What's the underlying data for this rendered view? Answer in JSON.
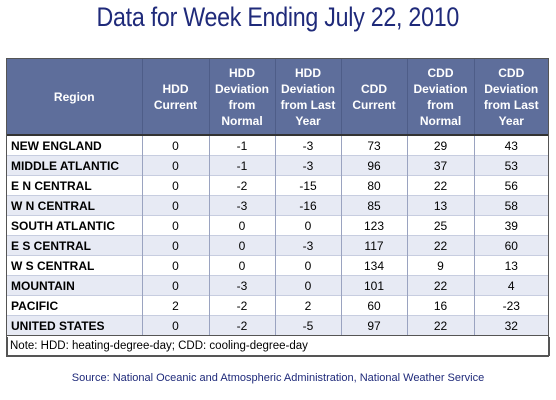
{
  "title": "Data for Week Ending July 22, 2010",
  "headers": [
    "Region",
    "HDD Current",
    "HDD Deviation from Normal",
    "HDD Deviation from Last Year",
    "CDD Current",
    "CDD Deviation from Normal",
    "CDD Deviation from Last Year"
  ],
  "rows": [
    [
      "NEW ENGLAND",
      "0",
      "-1",
      "-3",
      "73",
      "29",
      "43"
    ],
    [
      "MIDDLE ATLANTIC",
      "0",
      "-1",
      "-3",
      "96",
      "37",
      "53"
    ],
    [
      "E N CENTRAL",
      "0",
      "-2",
      "-15",
      "80",
      "22",
      "56"
    ],
    [
      "W N CENTRAL",
      "0",
      "-3",
      "-16",
      "85",
      "13",
      "58"
    ],
    [
      "SOUTH ATLANTIC",
      "0",
      "0",
      "0",
      "123",
      "25",
      "39"
    ],
    [
      "E S CENTRAL",
      "0",
      "0",
      "-3",
      "117",
      "22",
      "60"
    ],
    [
      "W S CENTRAL",
      "0",
      "0",
      "0",
      "134",
      "9",
      "13"
    ],
    [
      "MOUNTAIN",
      "0",
      "-3",
      "0",
      "101",
      "22",
      "4"
    ],
    [
      "PACIFIC",
      "2",
      "-2",
      "2",
      "60",
      "16",
      "-23"
    ],
    [
      "UNITED STATES",
      "0",
      "-2",
      "-5",
      "97",
      "22",
      "32"
    ]
  ],
  "note": "Note: HDD: heating-degree-day; CDD: cooling-degree-day",
  "source": "Source:  National Oceanic and Atmospheric Administration, National Weather Service",
  "colors": {
    "title": "#1f2a7a",
    "header_bg": "#5e6e9b",
    "stripe": "#e7eaf4"
  }
}
